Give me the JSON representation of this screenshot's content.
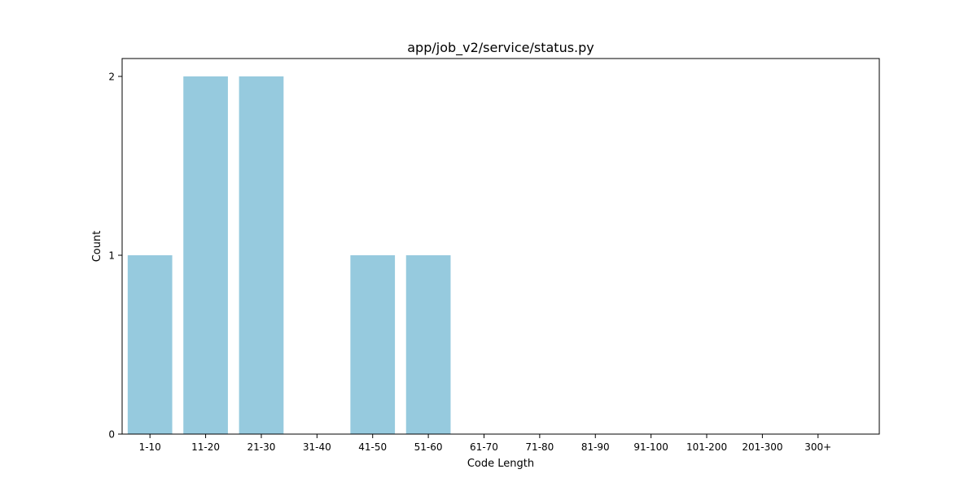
{
  "chart_data": {
    "type": "bar",
    "title": "app/job_v2/service/status.py",
    "xlabel": "Code Length",
    "ylabel": "Count",
    "categories": [
      "1-10",
      "11-20",
      "21-30",
      "31-40",
      "41-50",
      "51-60",
      "61-70",
      "71-80",
      "81-90",
      "91-100",
      "101-200",
      "201-300",
      "300+"
    ],
    "values": [
      1,
      2,
      2,
      0,
      1,
      1,
      0,
      0,
      0,
      0,
      0,
      0,
      0
    ],
    "ylim": [
      0,
      2.1
    ],
    "yticks": [
      0,
      1,
      2
    ],
    "grid": false,
    "legend": "none",
    "bar_color": "#96cade"
  }
}
